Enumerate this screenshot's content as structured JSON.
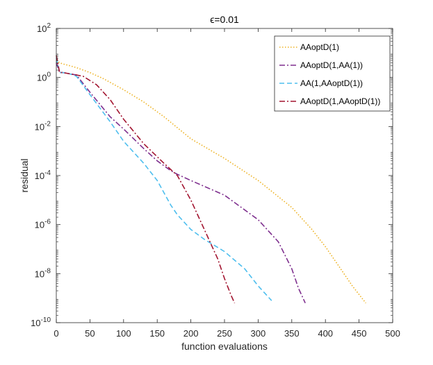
{
  "chart_data": {
    "type": "line",
    "title": "ϵ=0.01",
    "xlabel": "function evaluations",
    "ylabel": "residual",
    "xlim": [
      0,
      500
    ],
    "ylim_log10": [
      -10,
      2
    ],
    "yscale": "log",
    "legend_position": "top-right",
    "x_ticks": [
      {
        "value": 0,
        "label": "0"
      },
      {
        "value": 50,
        "label": "50"
      },
      {
        "value": 100,
        "label": "100"
      },
      {
        "value": 150,
        "label": "150"
      },
      {
        "value": 200,
        "label": "200"
      },
      {
        "value": 250,
        "label": "250"
      },
      {
        "value": 300,
        "label": "300"
      },
      {
        "value": 350,
        "label": "350"
      },
      {
        "value": 400,
        "label": "400"
      },
      {
        "value": 450,
        "label": "450"
      },
      {
        "value": 500,
        "label": "500"
      }
    ],
    "y_ticks": [
      {
        "exp": 2,
        "base": "10",
        "sup": "2"
      },
      {
        "exp": 0,
        "base": "10",
        "sup": "0"
      },
      {
        "exp": -2,
        "base": "10",
        "sup": "-2"
      },
      {
        "exp": -4,
        "base": "10",
        "sup": "-4"
      },
      {
        "exp": -6,
        "base": "10",
        "sup": "-6"
      },
      {
        "exp": -8,
        "base": "10",
        "sup": "-8"
      },
      {
        "exp": -10,
        "base": "10",
        "sup": "-10"
      }
    ],
    "series": [
      {
        "name": "AAoptD(1)",
        "color": "#EDB120",
        "dash": "dotted",
        "x": [
          0,
          5,
          10,
          20,
          30,
          50,
          70,
          100,
          130,
          160,
          200,
          250,
          300,
          350,
          380,
          400,
          420,
          440,
          460
        ],
        "log10_y": [
          0.7,
          0.6,
          0.55,
          0.48,
          0.4,
          0.2,
          -0.05,
          -0.5,
          -1.0,
          -1.6,
          -2.5,
          -3.3,
          -4.2,
          -5.3,
          -6.2,
          -6.9,
          -7.7,
          -8.5,
          -9.2
        ]
      },
      {
        "name": "AAoptD(1,AA(1))",
        "color": "#7E2F8E",
        "dash": "dashdot",
        "x": [
          0,
          5,
          10,
          20,
          30,
          50,
          80,
          100,
          130,
          150,
          170,
          180,
          200,
          250,
          300,
          330,
          350,
          360,
          370
        ],
        "log10_y": [
          0.6,
          0.2,
          0.2,
          0.15,
          0.1,
          -0.6,
          -1.6,
          -2.1,
          -2.9,
          -3.4,
          -3.8,
          -3.95,
          -4.2,
          -4.8,
          -5.8,
          -6.7,
          -7.8,
          -8.6,
          -9.2
        ]
      },
      {
        "name": "AA(1,AAoptD(1))",
        "color": "#4DBEEE",
        "dash": "dashed",
        "x": [
          0,
          5,
          10,
          20,
          30,
          50,
          80,
          100,
          130,
          150,
          170,
          180,
          200,
          220,
          250,
          280,
          300,
          320
        ],
        "log10_y": [
          0.8,
          0.2,
          0.2,
          0.15,
          0.05,
          -0.7,
          -1.8,
          -2.6,
          -3.5,
          -4.2,
          -5.2,
          -5.6,
          -6.2,
          -6.6,
          -7.1,
          -7.8,
          -8.5,
          -9.1
        ]
      },
      {
        "name": "AAoptD(1,AAoptD(1))",
        "color": "#A2142F",
        "dash": "dashdot",
        "x": [
          0,
          5,
          10,
          20,
          30,
          40,
          60,
          80,
          100,
          130,
          160,
          180,
          200,
          220,
          240,
          250,
          260,
          265
        ],
        "log10_y": [
          0.9,
          0.2,
          0.2,
          0.15,
          0.1,
          0.05,
          -0.3,
          -0.9,
          -1.7,
          -2.7,
          -3.5,
          -4.0,
          -5.0,
          -6.2,
          -7.4,
          -8.2,
          -8.9,
          -9.2
        ]
      }
    ]
  }
}
